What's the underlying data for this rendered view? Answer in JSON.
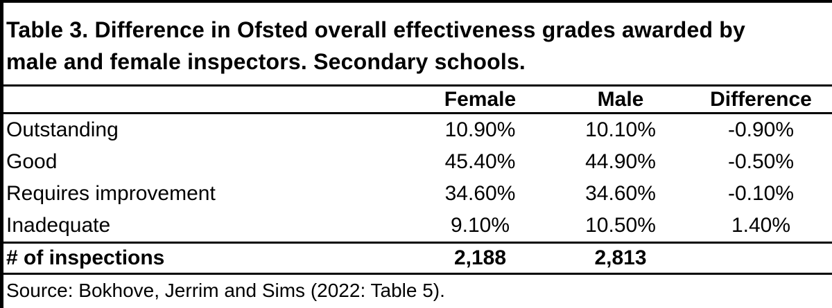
{
  "colors": {
    "background": "#ffffff",
    "text": "#000000",
    "border": "#000000"
  },
  "title": {
    "line1": "Table 3. Difference in Ofsted overall effectiveness grades awarded by",
    "line2": "male and female inspectors. Secondary schools."
  },
  "table": {
    "header": {
      "label": "",
      "female": "Female",
      "male": "Male",
      "difference": "Difference"
    },
    "rows": [
      {
        "label": "Outstanding",
        "female": "10.90%",
        "male": "10.10%",
        "difference": "-0.90%"
      },
      {
        "label": "Good",
        "female": "45.40%",
        "male": "44.90%",
        "difference": "-0.50%"
      },
      {
        "label": "Requires improvement",
        "female": "34.60%",
        "male": "34.60%",
        "difference": "-0.10%"
      },
      {
        "label": "Inadequate",
        "female": "9.10%",
        "male": "10.50%",
        "difference": "1.40%"
      }
    ],
    "totals": {
      "label": "# of inspections",
      "female": "2,188",
      "male": "2,813",
      "difference": ""
    }
  },
  "source": "Source: Bokhove, Jerrim and Sims (2022: Table 5)."
}
